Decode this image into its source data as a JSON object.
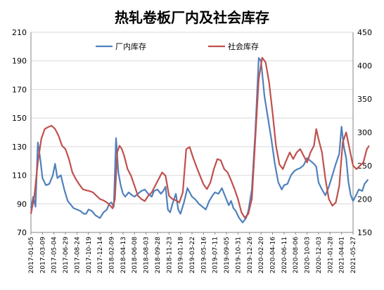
{
  "chart_data": {
    "type": "line",
    "title": "热轧卷板厂内及社会库存",
    "grid": true,
    "legend_position": "top-center",
    "y_left": {
      "min": 70,
      "max": 210,
      "ticks": [
        70,
        90,
        110,
        130,
        150,
        170,
        190,
        210
      ]
    },
    "y_right": {
      "min": 150,
      "max": 450,
      "ticks": [
        150,
        200,
        250,
        300,
        350,
        400,
        450
      ]
    },
    "x_tick_labels": [
      "2017-01-05",
      "2017-03-09",
      "2017-05-04",
      "2017-06-29",
      "2017-08-24",
      "2017-10-19",
      "2017-12-14",
      "2018-02-09",
      "2018-04-13",
      "2018-06-08",
      "2018-08-03",
      "2018-09-28",
      "2018-11-23",
      "2019-01-18",
      "2019-03-22",
      "2019-05-16",
      "2019-07-11",
      "2019-09-05",
      "2019-10-31",
      "2019-12-26",
      "2020-02-20",
      "2020-04-16",
      "2020-06-11",
      "2020-08-06",
      "2020-10-03",
      "2020-12-03",
      "2021-01-28",
      "2021-04-01",
      "2021-05-27"
    ],
    "series": [
      {
        "name": "厂内库存",
        "axis": "left",
        "color": "#4f81bd",
        "points": [
          [
            0,
            87
          ],
          [
            0.2,
            95
          ],
          [
            0.4,
            88
          ],
          [
            0.6,
            133
          ],
          [
            0.8,
            122
          ],
          [
            1.0,
            108
          ],
          [
            1.3,
            103
          ],
          [
            1.6,
            104
          ],
          [
            1.9,
            110
          ],
          [
            2.1,
            118
          ],
          [
            2.3,
            108
          ],
          [
            2.6,
            110
          ],
          [
            2.9,
            100
          ],
          [
            3.2,
            92
          ],
          [
            3.5,
            89
          ],
          [
            3.7,
            87
          ],
          [
            4.0,
            86
          ],
          [
            4.3,
            85
          ],
          [
            4.6,
            83
          ],
          [
            4.8,
            83
          ],
          [
            5.0,
            86
          ],
          [
            5.3,
            85
          ],
          [
            5.6,
            82
          ],
          [
            5.8,
            81
          ],
          [
            6.0,
            80
          ],
          [
            6.3,
            84
          ],
          [
            6.6,
            86
          ],
          [
            6.8,
            90
          ],
          [
            7.0,
            91
          ],
          [
            7.2,
            88
          ],
          [
            7.4,
            136
          ],
          [
            7.6,
            112
          ],
          [
            7.8,
            103
          ],
          [
            8.0,
            97
          ],
          [
            8.2,
            95
          ],
          [
            8.5,
            98
          ],
          [
            8.8,
            96
          ],
          [
            9.0,
            95
          ],
          [
            9.3,
            97
          ],
          [
            9.6,
            99
          ],
          [
            9.9,
            100
          ],
          [
            10.2,
            97
          ],
          [
            10.5,
            95
          ],
          [
            10.7,
            99
          ],
          [
            11.0,
            100
          ],
          [
            11.3,
            97
          ],
          [
            11.5,
            99
          ],
          [
            11.7,
            102
          ],
          [
            11.9,
            86
          ],
          [
            12.1,
            84
          ],
          [
            12.3,
            90
          ],
          [
            12.6,
            97
          ],
          [
            12.8,
            86
          ],
          [
            13.0,
            83
          ],
          [
            13.3,
            91
          ],
          [
            13.6,
            101
          ],
          [
            13.8,
            98
          ],
          [
            14.0,
            95
          ],
          [
            14.3,
            93
          ],
          [
            14.6,
            90
          ],
          [
            14.9,
            88
          ],
          [
            15.2,
            86
          ],
          [
            15.5,
            92
          ],
          [
            15.8,
            96
          ],
          [
            16.0,
            98
          ],
          [
            16.3,
            97
          ],
          [
            16.6,
            101
          ],
          [
            16.9,
            95
          ],
          [
            17.2,
            89
          ],
          [
            17.4,
            92
          ],
          [
            17.6,
            87
          ],
          [
            17.8,
            85
          ],
          [
            18.1,
            80
          ],
          [
            18.4,
            77
          ],
          [
            18.7,
            80
          ],
          [
            18.9,
            85
          ],
          [
            19.2,
            100
          ],
          [
            19.5,
            140
          ],
          [
            19.8,
            192
          ],
          [
            20.0,
            190
          ],
          [
            20.3,
            165
          ],
          [
            20.6,
            150
          ],
          [
            20.9,
            135
          ],
          [
            21.2,
            118
          ],
          [
            21.5,
            105
          ],
          [
            21.8,
            100
          ],
          [
            22.0,
            103
          ],
          [
            22.3,
            104
          ],
          [
            22.6,
            110
          ],
          [
            22.9,
            113
          ],
          [
            23.1,
            114
          ],
          [
            23.4,
            115
          ],
          [
            23.7,
            117
          ],
          [
            24.0,
            122
          ],
          [
            24.3,
            120
          ],
          [
            24.6,
            118
          ],
          [
            24.8,
            116
          ],
          [
            25.0,
            105
          ],
          [
            25.3,
            100
          ],
          [
            25.6,
            96
          ],
          [
            25.9,
            102
          ],
          [
            26.2,
            110
          ],
          [
            26.5,
            118
          ],
          [
            26.8,
            125
          ],
          [
            27.0,
            144
          ],
          [
            27.2,
            130
          ],
          [
            27.4,
            122
          ],
          [
            27.6,
            105
          ],
          [
            27.8,
            96
          ],
          [
            28.0,
            92
          ],
          [
            28.2,
            95
          ],
          [
            28.5,
            100
          ],
          [
            28.8,
            99
          ],
          [
            29.0,
            104
          ],
          [
            29.3,
            107
          ]
        ]
      },
      {
        "name": "社会库存",
        "axis": "right",
        "color": "#c0504d",
        "points": [
          [
            0,
            178
          ],
          [
            0.3,
            205
          ],
          [
            0.6,
            255
          ],
          [
            0.9,
            290
          ],
          [
            1.2,
            305
          ],
          [
            1.5,
            308
          ],
          [
            1.8,
            310
          ],
          [
            2.1,
            305
          ],
          [
            2.4,
            295
          ],
          [
            2.7,
            280
          ],
          [
            3.0,
            275
          ],
          [
            3.3,
            260
          ],
          [
            3.6,
            240
          ],
          [
            3.9,
            230
          ],
          [
            4.2,
            222
          ],
          [
            4.5,
            215
          ],
          [
            4.8,
            213
          ],
          [
            5.1,
            212
          ],
          [
            5.4,
            210
          ],
          [
            5.7,
            205
          ],
          [
            6.0,
            200
          ],
          [
            6.3,
            198
          ],
          [
            6.6,
            195
          ],
          [
            6.9,
            190
          ],
          [
            7.1,
            186
          ],
          [
            7.3,
            200
          ],
          [
            7.5,
            270
          ],
          [
            7.7,
            280
          ],
          [
            7.9,
            275
          ],
          [
            8.1,
            265
          ],
          [
            8.4,
            245
          ],
          [
            8.7,
            235
          ],
          [
            9.0,
            220
          ],
          [
            9.3,
            205
          ],
          [
            9.6,
            200
          ],
          [
            9.9,
            197
          ],
          [
            10.2,
            205
          ],
          [
            10.5,
            210
          ],
          [
            10.8,
            220
          ],
          [
            11.1,
            230
          ],
          [
            11.4,
            240
          ],
          [
            11.7,
            235
          ],
          [
            12.0,
            205
          ],
          [
            12.3,
            200
          ],
          [
            12.6,
            198
          ],
          [
            12.9,
            195
          ],
          [
            13.2,
            210
          ],
          [
            13.5,
            275
          ],
          [
            13.8,
            278
          ],
          [
            14.1,
            262
          ],
          [
            14.4,
            248
          ],
          [
            14.7,
            235
          ],
          [
            15.0,
            222
          ],
          [
            15.3,
            215
          ],
          [
            15.6,
            225
          ],
          [
            15.9,
            245
          ],
          [
            16.2,
            260
          ],
          [
            16.5,
            258
          ],
          [
            16.8,
            245
          ],
          [
            17.1,
            240
          ],
          [
            17.4,
            228
          ],
          [
            17.7,
            215
          ],
          [
            18.0,
            200
          ],
          [
            18.3,
            180
          ],
          [
            18.6,
            172
          ],
          [
            18.9,
            178
          ],
          [
            19.2,
            200
          ],
          [
            19.5,
            290
          ],
          [
            19.8,
            380
          ],
          [
            20.1,
            412
          ],
          [
            20.4,
            405
          ],
          [
            20.7,
            375
          ],
          [
            21.0,
            330
          ],
          [
            21.3,
            280
          ],
          [
            21.6,
            252
          ],
          [
            21.9,
            245
          ],
          [
            22.2,
            258
          ],
          [
            22.5,
            270
          ],
          [
            22.8,
            260
          ],
          [
            23.1,
            270
          ],
          [
            23.4,
            275
          ],
          [
            23.7,
            265
          ],
          [
            24.0,
            255
          ],
          [
            24.3,
            270
          ],
          [
            24.6,
            280
          ],
          [
            24.8,
            305
          ],
          [
            25.0,
            290
          ],
          [
            25.3,
            270
          ],
          [
            25.6,
            230
          ],
          [
            25.9,
            200
          ],
          [
            26.2,
            190
          ],
          [
            26.5,
            195
          ],
          [
            26.8,
            220
          ],
          [
            27.1,
            285
          ],
          [
            27.4,
            300
          ],
          [
            27.7,
            275
          ],
          [
            28.0,
            250
          ],
          [
            28.3,
            245
          ],
          [
            28.6,
            250
          ],
          [
            28.9,
            255
          ],
          [
            29.2,
            275
          ],
          [
            29.4,
            280
          ]
        ]
      }
    ]
  }
}
